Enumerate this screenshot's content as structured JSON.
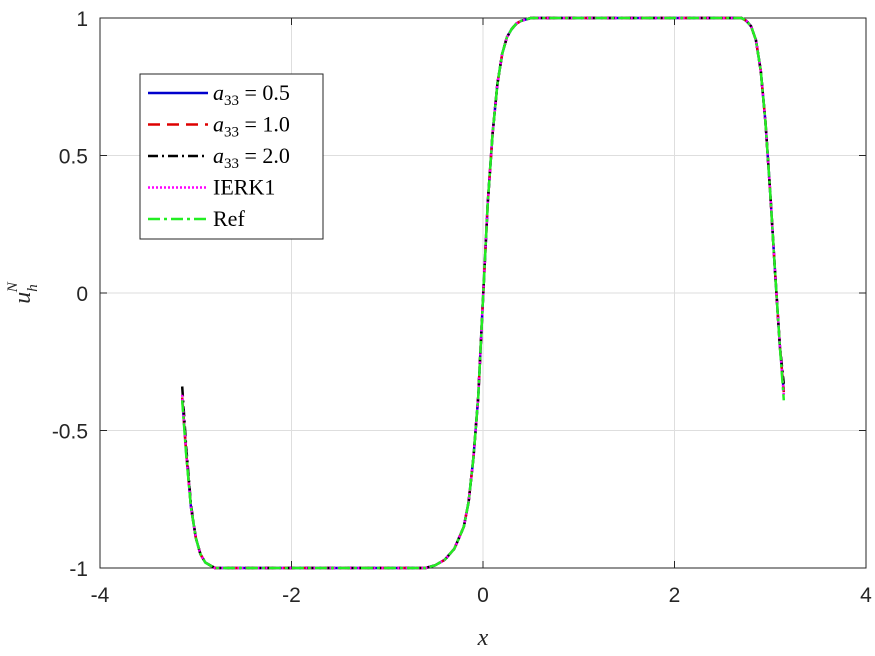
{
  "chart_data": {
    "type": "line",
    "xlabel": "x",
    "ylabel": "u",
    "ylabel_sub": "h",
    "ylabel_sup": "N",
    "xlim": [
      -4,
      4
    ],
    "ylim": [
      -1,
      1
    ],
    "xticks": [
      -4,
      -2,
      0,
      2,
      4
    ],
    "xtick_labels": [
      "-4",
      "-2",
      "0",
      "2",
      "4"
    ],
    "yticks": [
      -1,
      -0.5,
      0,
      0.5,
      1
    ],
    "ytick_labels": [
      "-1",
      "-0.5",
      "0",
      "0.5",
      "1"
    ],
    "grid": true,
    "legend_position": "upper-left",
    "x": [
      -3.1416,
      -3.1,
      -3.05,
      -3.0,
      -2.95,
      -2.9,
      -2.85,
      -2.8,
      -2.75,
      -2.7,
      -2.6,
      -2.4,
      -2.0,
      -1.5,
      -1.0,
      -0.8,
      -0.6,
      -0.5,
      -0.4,
      -0.3,
      -0.2,
      -0.15,
      -0.1,
      -0.05,
      0.0,
      0.05,
      0.1,
      0.15,
      0.2,
      0.25,
      0.3,
      0.35,
      0.4,
      0.5,
      0.6,
      0.8,
      1.0,
      1.5,
      2.0,
      2.5,
      2.6,
      2.7,
      2.75,
      2.8,
      2.85,
      2.9,
      2.95,
      3.0,
      3.05,
      3.1,
      3.1416
    ],
    "series": [
      {
        "name": "a33 = 0.5",
        "legend_prefix": "a",
        "legend_sub": "33",
        "legend_value": "= 0.5",
        "color": "#0000cc",
        "dash": "",
        "width": 2.5,
        "values": [
          -0.38,
          -0.58,
          -0.78,
          -0.89,
          -0.95,
          -0.98,
          -0.99,
          -1.0,
          -1.0,
          -1.0,
          -1.0,
          -1.0,
          -1.0,
          -1.0,
          -1.0,
          -1.0,
          -1.0,
          -0.99,
          -0.97,
          -0.93,
          -0.85,
          -0.76,
          -0.6,
          -0.38,
          -0.02,
          0.33,
          0.58,
          0.76,
          0.87,
          0.93,
          0.96,
          0.98,
          0.99,
          1.0,
          1.0,
          1.0,
          1.0,
          1.0,
          1.0,
          1.0,
          1.0,
          1.0,
          0.99,
          0.97,
          0.92,
          0.81,
          0.62,
          0.36,
          0.08,
          -0.19,
          -0.36
        ]
      },
      {
        "name": "a33 = 1.0",
        "legend_prefix": "a",
        "legend_sub": "33",
        "legend_value": "= 1.0",
        "color": "#dd0000",
        "dash": "12,7",
        "width": 2.5,
        "values": [
          -0.38,
          -0.58,
          -0.78,
          -0.89,
          -0.95,
          -0.98,
          -0.99,
          -1.0,
          -1.0,
          -1.0,
          -1.0,
          -1.0,
          -1.0,
          -1.0,
          -1.0,
          -1.0,
          -1.0,
          -0.99,
          -0.97,
          -0.93,
          -0.85,
          -0.76,
          -0.6,
          -0.38,
          -0.02,
          0.33,
          0.58,
          0.76,
          0.87,
          0.93,
          0.96,
          0.98,
          0.99,
          1.0,
          1.0,
          1.0,
          1.0,
          1.0,
          1.0,
          1.0,
          1.0,
          1.0,
          0.99,
          0.97,
          0.92,
          0.81,
          0.62,
          0.36,
          0.08,
          -0.19,
          -0.36
        ]
      },
      {
        "name": "a33 = 2.0",
        "legend_prefix": "a",
        "legend_sub": "33",
        "legend_value": "= 2.0",
        "color": "#000000",
        "dash": "10,4,2,4",
        "width": 2.5,
        "values": [
          -0.34,
          -0.56,
          -0.77,
          -0.89,
          -0.95,
          -0.98,
          -0.99,
          -1.0,
          -1.0,
          -1.0,
          -1.0,
          -1.0,
          -1.0,
          -1.0,
          -1.0,
          -1.0,
          -1.0,
          -0.99,
          -0.97,
          -0.93,
          -0.85,
          -0.76,
          -0.6,
          -0.38,
          -0.02,
          0.33,
          0.58,
          0.76,
          0.87,
          0.93,
          0.96,
          0.98,
          0.99,
          1.0,
          1.0,
          1.0,
          1.0,
          1.0,
          1.0,
          1.0,
          1.0,
          1.0,
          0.99,
          0.97,
          0.92,
          0.81,
          0.62,
          0.36,
          0.08,
          -0.19,
          -0.33
        ]
      },
      {
        "name": "IERK1",
        "legend_prefix": "",
        "legend_sub": "",
        "legend_value": "IERK1",
        "color": "#ff00ff",
        "dash": "2,2",
        "width": 2.5,
        "values": [
          -0.37,
          -0.58,
          -0.78,
          -0.89,
          -0.95,
          -0.98,
          -0.99,
          -1.0,
          -1.0,
          -1.0,
          -1.0,
          -1.0,
          -1.0,
          -1.0,
          -1.0,
          -1.0,
          -1.0,
          -0.99,
          -0.97,
          -0.93,
          -0.85,
          -0.76,
          -0.6,
          -0.38,
          -0.02,
          0.33,
          0.58,
          0.76,
          0.87,
          0.93,
          0.96,
          0.98,
          0.99,
          1.0,
          1.0,
          1.0,
          1.0,
          1.0,
          1.0,
          1.0,
          1.0,
          1.0,
          0.99,
          0.97,
          0.92,
          0.81,
          0.62,
          0.36,
          0.08,
          -0.19,
          -0.37
        ]
      },
      {
        "name": "Ref",
        "legend_prefix": "",
        "legend_sub": "",
        "legend_value": "Ref",
        "color": "#22ee22",
        "dash": "12,4,3,4",
        "width": 2.5,
        "values": [
          -0.39,
          -0.59,
          -0.78,
          -0.89,
          -0.95,
          -0.98,
          -0.99,
          -1.0,
          -1.0,
          -1.0,
          -1.0,
          -1.0,
          -1.0,
          -1.0,
          -1.0,
          -1.0,
          -1.0,
          -0.99,
          -0.97,
          -0.93,
          -0.85,
          -0.76,
          -0.6,
          -0.38,
          -0.02,
          0.33,
          0.58,
          0.76,
          0.87,
          0.93,
          0.96,
          0.98,
          0.99,
          1.0,
          1.0,
          1.0,
          1.0,
          1.0,
          1.0,
          1.0,
          1.0,
          1.0,
          0.99,
          0.97,
          0.92,
          0.81,
          0.62,
          0.36,
          0.08,
          -0.19,
          -0.39
        ]
      }
    ]
  }
}
